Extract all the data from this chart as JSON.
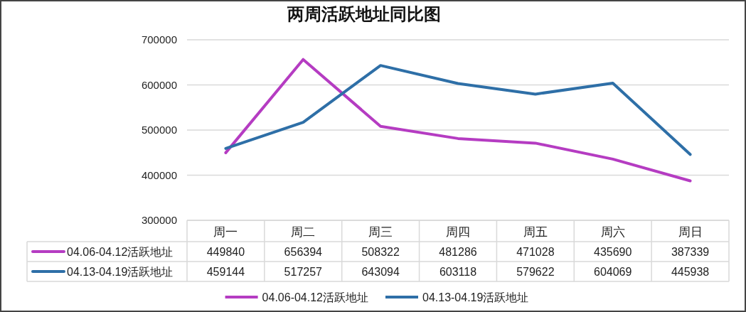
{
  "chart_data": {
    "type": "line",
    "title": "两周活跃地址同比图",
    "categories": [
      "周一",
      "周二",
      "周三",
      "周四",
      "周五",
      "周六",
      "周日"
    ],
    "series": [
      {
        "name": "04.06-04.12活跃地址",
        "color": "#b53cc2",
        "values": [
          449840,
          656394,
          508322,
          481286,
          471028,
          435690,
          387339
        ]
      },
      {
        "name": "04.13-04.19活跃地址",
        "color": "#2e6fa7",
        "values": [
          459144,
          517257,
          643094,
          603118,
          579622,
          604069,
          445938
        ]
      }
    ],
    "ylim": [
      300000,
      700000
    ],
    "yticks": [
      300000,
      400000,
      500000,
      600000,
      700000
    ],
    "grid": "y",
    "legend": "bottom",
    "data_labels": true
  }
}
